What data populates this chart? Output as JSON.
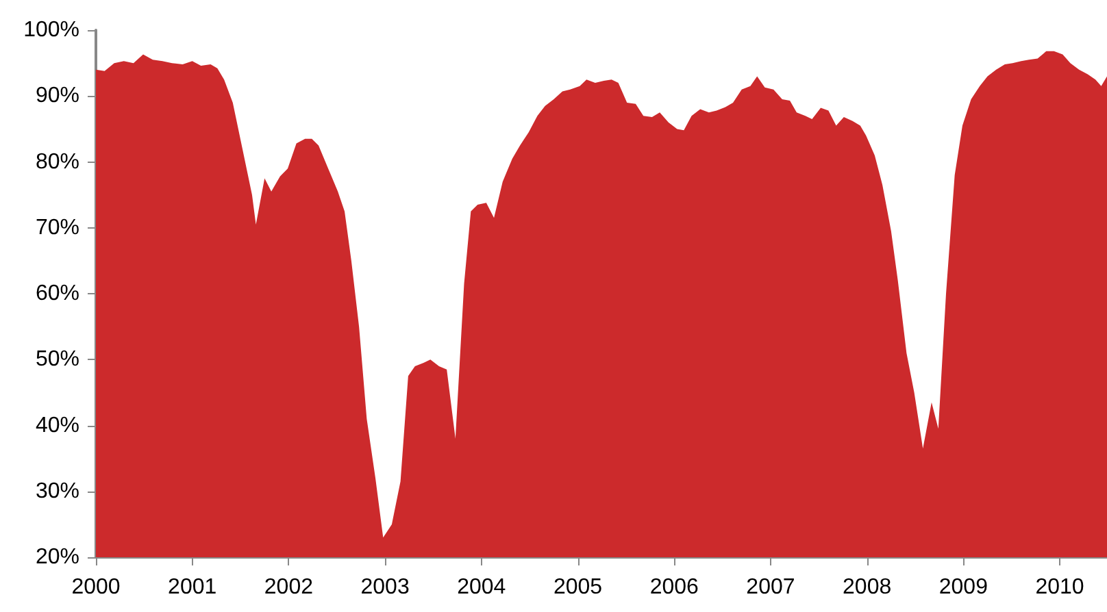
{
  "chart_data": {
    "type": "area",
    "xlim": [
      2000,
      2010.49
    ],
    "xticks": [
      2000,
      2001,
      2002,
      2003,
      2004,
      2005,
      2006,
      2007,
      2008,
      2009,
      2010
    ],
    "ylim": [
      20,
      100
    ],
    "yticks": [
      {
        "value": 20,
        "label": "20%"
      },
      {
        "value": 30,
        "label": "30%"
      },
      {
        "value": 40,
        "label": "40%"
      },
      {
        "value": 50,
        "label": "50%"
      },
      {
        "value": 60,
        "label": "60%"
      },
      {
        "value": 70,
        "label": "70%"
      },
      {
        "value": 80,
        "label": "80%"
      },
      {
        "value": 90,
        "label": "90%"
      },
      {
        "value": 100,
        "label": "100%"
      }
    ],
    "grid": false,
    "series": [
      {
        "color": "#cc2a2c",
        "x": [
          2000.0,
          2000.09,
          2000.19,
          2000.29,
          2000.39,
          2000.49,
          2000.59,
          2000.69,
          2000.79,
          2000.9,
          2001.0,
          2001.09,
          2001.19,
          2001.26,
          2001.33,
          2001.42,
          2001.52,
          2001.62,
          2001.66,
          2001.75,
          2001.82,
          2001.91,
          2001.99,
          2002.08,
          2002.17,
          2002.24,
          2002.31,
          2002.41,
          2002.51,
          2002.58,
          2002.65,
          2002.73,
          2002.81,
          2002.9,
          2002.98,
          2003.07,
          2003.16,
          2003.24,
          2003.31,
          2003.4,
          2003.47,
          2003.56,
          2003.64,
          2003.73,
          2003.82,
          2003.89,
          2003.96,
          2004.05,
          2004.13,
          2004.22,
          2004.32,
          2004.4,
          2004.49,
          2004.58,
          2004.66,
          2004.75,
          2004.84,
          2004.92,
          2005.02,
          2005.09,
          2005.18,
          2005.27,
          2005.35,
          2005.42,
          2005.51,
          2005.6,
          2005.68,
          2005.77,
          2005.85,
          2005.94,
          2006.03,
          2006.1,
          2006.18,
          2006.27,
          2006.36,
          2006.44,
          2006.53,
          2006.61,
          2006.7,
          2006.79,
          2006.86,
          2006.94,
          2007.03,
          2007.12,
          2007.2,
          2007.27,
          2007.36,
          2007.43,
          2007.52,
          2007.6,
          2007.68,
          2007.76,
          2007.85,
          2007.93,
          2007.99,
          2008.08,
          2008.16,
          2008.25,
          2008.32,
          2008.41,
          2008.49,
          2008.58,
          2008.67,
          2008.74,
          2008.82,
          2008.91,
          2008.99,
          2009.08,
          2009.17,
          2009.25,
          2009.34,
          2009.43,
          2009.51,
          2009.6,
          2009.68,
          2009.77,
          2009.86,
          2009.94,
          2010.03,
          2010.11,
          2010.2,
          2010.29,
          2010.37,
          2010.43,
          2010.49
        ],
        "values": [
          94,
          93.8,
          95,
          95.3,
          95,
          96.3,
          95.5,
          95.3,
          95,
          94.8,
          95.3,
          94.6,
          94.8,
          94.2,
          92.5,
          89,
          82,
          75,
          70.5,
          77.5,
          75.5,
          77.8,
          79,
          82.8,
          83.5,
          83.5,
          82.5,
          79,
          75.5,
          72.5,
          65,
          55,
          41,
          32,
          23,
          25,
          31.5,
          47.5,
          49,
          49.5,
          50,
          49,
          48.5,
          38,
          61.5,
          72.5,
          73.5,
          73.8,
          71.5,
          77,
          80.5,
          82.5,
          84.5,
          87,
          88.5,
          89.5,
          90.7,
          91,
          91.5,
          92.5,
          92,
          92.3,
          92.5,
          92,
          89,
          88.8,
          87,
          86.8,
          87.5,
          86,
          85,
          84.8,
          87,
          88,
          87.5,
          87.8,
          88.3,
          89,
          91,
          91.5,
          93,
          91.3,
          91,
          89.5,
          89.3,
          87.5,
          87,
          86.5,
          88.2,
          87.8,
          85.5,
          86.8,
          86.2,
          85.5,
          84,
          81,
          76.5,
          69.5,
          62,
          51,
          45,
          36.5,
          43.5,
          39.5,
          60,
          78,
          85.5,
          89.5,
          91.5,
          93,
          94,
          94.8,
          95,
          95.3,
          95.5,
          95.7,
          96.8,
          96.8,
          96.3,
          95,
          94,
          93.3,
          92.5,
          91.5,
          93
        ]
      }
    ]
  }
}
